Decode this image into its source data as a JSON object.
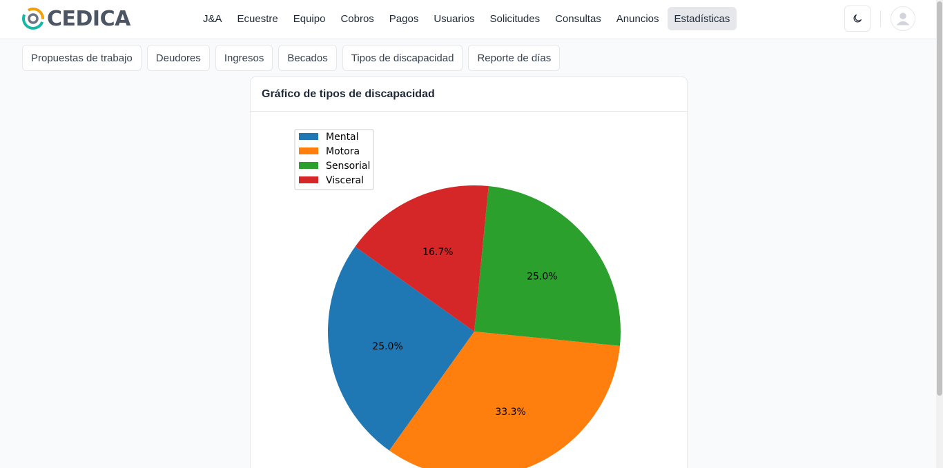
{
  "brand": {
    "name": "CEDICA"
  },
  "nav": {
    "items": [
      {
        "label": "J&A"
      },
      {
        "label": "Ecuestre"
      },
      {
        "label": "Equipo"
      },
      {
        "label": "Cobros"
      },
      {
        "label": "Pagos"
      },
      {
        "label": "Usuarios"
      },
      {
        "label": "Solicitudes"
      },
      {
        "label": "Consultas"
      },
      {
        "label": "Anuncios"
      },
      {
        "label": "Estadísticas",
        "active": true
      }
    ]
  },
  "header_icons": {
    "theme_toggle": "moon-icon",
    "account": "user-icon"
  },
  "subtabs": {
    "items": [
      {
        "label": "Propuestas de trabajo"
      },
      {
        "label": "Deudores"
      },
      {
        "label": "Ingresos"
      },
      {
        "label": "Becados"
      },
      {
        "label": "Tipos de discapacidad"
      },
      {
        "label": "Reporte de días"
      }
    ]
  },
  "card": {
    "title": "Gráfico de tipos de discapacidad"
  },
  "chart_data": {
    "type": "pie",
    "categories": [
      "Mental",
      "Motora",
      "Sensorial",
      "Visceral"
    ],
    "values": [
      25.0,
      33.3,
      25.0,
      16.7
    ],
    "labels": [
      "25.0%",
      "33.3%",
      "25.0%",
      "16.7%"
    ],
    "colors": [
      "#1f77b4",
      "#ff7f0e",
      "#2ca02c",
      "#d62728"
    ],
    "legend_position": "top-left",
    "title": ""
  }
}
